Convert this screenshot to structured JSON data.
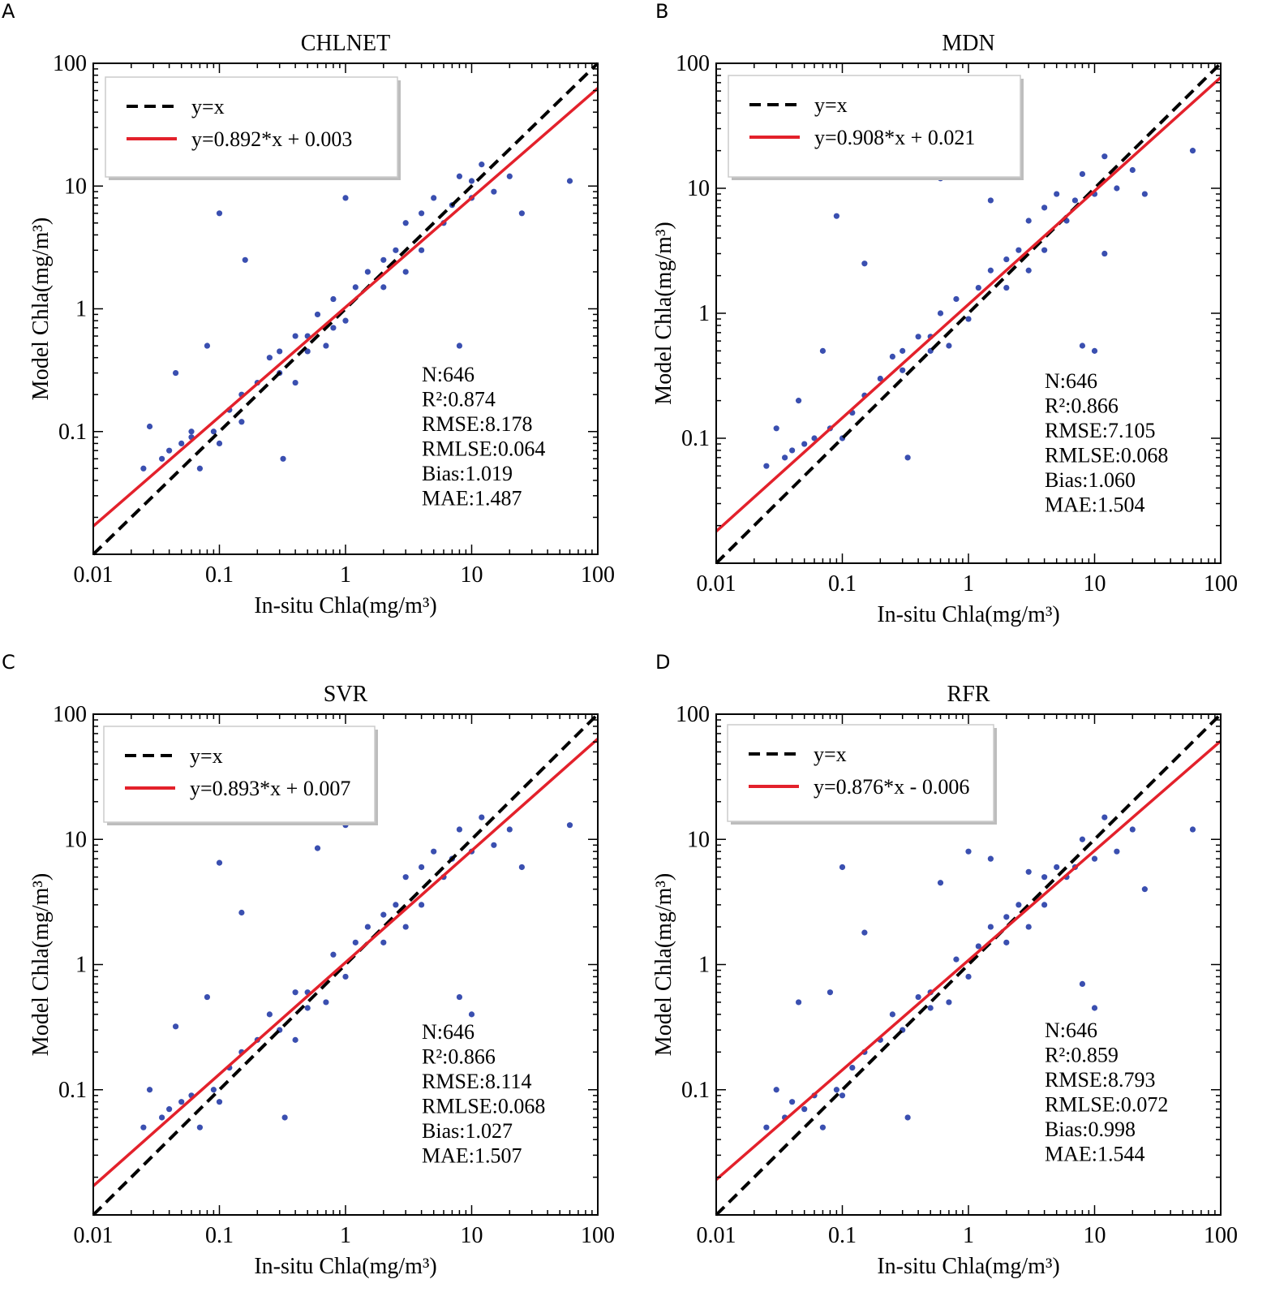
{
  "chart_data": [
    {
      "type": "scatter",
      "panel_label": "A",
      "title": "CHLNET",
      "xlabel": "In-situ Chla(mg/m³)",
      "ylabel": "Model Chla(mg/m³)",
      "xscale": "log",
      "yscale": "log",
      "xlim": [
        0.01,
        100
      ],
      "ylim": [
        0.01,
        100
      ],
      "xticks": [
        "0.01",
        "0.1",
        "1",
        "10",
        "100"
      ],
      "yticks": [
        "",
        "0.1",
        "1",
        "10",
        "100"
      ],
      "legend": {
        "placement": "top-left",
        "entries": [
          "y=x",
          "y=0.892*x + 0.003"
        ]
      },
      "fit": {
        "slope": 0.892,
        "intercept": 0.003
      },
      "stats": [
        "N:646",
        "R²:0.874",
        "RMSE:8.178",
        "RMLSE:0.064",
        "Bias:1.019",
        "MAE:1.487"
      ],
      "points": [
        [
          0.025,
          0.05
        ],
        [
          0.028,
          0.11
        ],
        [
          0.035,
          0.06
        ],
        [
          0.04,
          0.07
        ],
        [
          0.045,
          0.3
        ],
        [
          0.05,
          0.08
        ],
        [
          0.06,
          0.09
        ],
        [
          0.07,
          0.05
        ],
        [
          0.08,
          0.5
        ],
        [
          0.09,
          0.1
        ],
        [
          0.1,
          6
        ],
        [
          0.1,
          0.08
        ],
        [
          0.12,
          0.15
        ],
        [
          0.15,
          0.2
        ],
        [
          0.16,
          2.5
        ],
        [
          0.2,
          0.25
        ],
        [
          0.25,
          0.4
        ],
        [
          0.3,
          0.3
        ],
        [
          0.32,
          0.06
        ],
        [
          0.4,
          0.6
        ],
        [
          0.5,
          0.45
        ],
        [
          0.6,
          0.9
        ],
        [
          0.7,
          0.5
        ],
        [
          0.8,
          1.2
        ],
        [
          1,
          0.8
        ],
        [
          1,
          8
        ],
        [
          1.5,
          2
        ],
        [
          2,
          1.5
        ],
        [
          2.5,
          3
        ],
        [
          3,
          5
        ],
        [
          4,
          3
        ],
        [
          5,
          8
        ],
        [
          6,
          5
        ],
        [
          8,
          12
        ],
        [
          8,
          0.5
        ],
        [
          10,
          8
        ],
        [
          12,
          15
        ],
        [
          15,
          9
        ],
        [
          20,
          12
        ],
        [
          25,
          6
        ],
        [
          60,
          11
        ],
        [
          0.4,
          0.25
        ],
        [
          1.2,
          1.5
        ],
        [
          0.06,
          0.1
        ],
        [
          0.15,
          0.12
        ],
        [
          3,
          2
        ],
        [
          7,
          7
        ],
        [
          0.5,
          0.6
        ],
        [
          2,
          2.5
        ],
        [
          0.3,
          0.45
        ],
        [
          0.8,
          0.7
        ],
        [
          4,
          6
        ],
        [
          10,
          11
        ]
      ]
    },
    {
      "type": "scatter",
      "panel_label": "B",
      "title": "MDN",
      "xlabel": "In-situ Chla(mg/m³)",
      "ylabel": "Model Chla(mg/m³)",
      "xscale": "log",
      "yscale": "log",
      "xlim": [
        0.01,
        100
      ],
      "ylim": [
        0.01,
        100
      ],
      "xticks": [
        "0.01",
        "0.1",
        "1",
        "10",
        "100"
      ],
      "yticks": [
        "",
        "0.1",
        "1",
        "10",
        "100"
      ],
      "legend": {
        "placement": "top-left",
        "entries": [
          "y=x",
          "y=0.908*x + 0.021"
        ]
      },
      "fit": {
        "slope": 0.908,
        "intercept": 0.021
      },
      "stats": [
        "N:646",
        "R²:0.866",
        "RMSE:7.105",
        "RMLSE:0.068",
        "Bias:1.060",
        "MAE:1.504"
      ],
      "points": [
        [
          0.025,
          0.06
        ],
        [
          0.03,
          0.12
        ],
        [
          0.035,
          0.07
        ],
        [
          0.04,
          0.08
        ],
        [
          0.045,
          0.2
        ],
        [
          0.05,
          0.09
        ],
        [
          0.06,
          0.1
        ],
        [
          0.07,
          0.5
        ],
        [
          0.08,
          0.12
        ],
        [
          0.09,
          6
        ],
        [
          0.1,
          0.1
        ],
        [
          0.12,
          0.16
        ],
        [
          0.15,
          2.5
        ],
        [
          0.15,
          0.22
        ],
        [
          0.2,
          0.3
        ],
        [
          0.25,
          0.45
        ],
        [
          0.3,
          0.35
        ],
        [
          0.33,
          0.07
        ],
        [
          0.4,
          0.65
        ],
        [
          0.5,
          0.5
        ],
        [
          0.6,
          1
        ],
        [
          0.6,
          12
        ],
        [
          0.7,
          0.55
        ],
        [
          0.8,
          1.3
        ],
        [
          1,
          0.9
        ],
        [
          1.5,
          8
        ],
        [
          1.5,
          2.2
        ],
        [
          2,
          1.6
        ],
        [
          2.5,
          3.2
        ],
        [
          3,
          5.5
        ],
        [
          4,
          3.2
        ],
        [
          5,
          9
        ],
        [
          6,
          5.5
        ],
        [
          8,
          13
        ],
        [
          8,
          0.55
        ],
        [
          10,
          0.5
        ],
        [
          10,
          9
        ],
        [
          12,
          18
        ],
        [
          12,
          3
        ],
        [
          15,
          10
        ],
        [
          20,
          14
        ],
        [
          25,
          9
        ],
        [
          60,
          20
        ],
        [
          1.2,
          1.6
        ],
        [
          3,
          2.2
        ],
        [
          7,
          8
        ],
        [
          0.5,
          0.65
        ],
        [
          2,
          2.7
        ],
        [
          0.3,
          0.5
        ],
        [
          4,
          7
        ]
      ]
    },
    {
      "type": "scatter",
      "panel_label": "C",
      "title": "SVR",
      "xlabel": "In-situ Chla(mg/m³)",
      "ylabel": "Model Chla(mg/m³)",
      "xscale": "log",
      "yscale": "log",
      "xlim": [
        0.01,
        100
      ],
      "ylim": [
        0.01,
        100
      ],
      "xticks": [
        "0.01",
        "0.1",
        "1",
        "10",
        "100"
      ],
      "yticks": [
        "",
        "0.1",
        "1",
        "10",
        "100"
      ],
      "legend": {
        "placement": "top-left",
        "entries": [
          "y=x",
          "y=0.893*x + 0.007"
        ]
      },
      "fit": {
        "slope": 0.893,
        "intercept": 0.007
      },
      "stats": [
        "N:646",
        "R²:0.866",
        "RMSE:8.114",
        "RMLSE:0.068",
        "Bias:1.027",
        "MAE:1.507"
      ],
      "points": [
        [
          0.025,
          0.05
        ],
        [
          0.028,
          0.1
        ],
        [
          0.035,
          0.06
        ],
        [
          0.04,
          0.07
        ],
        [
          0.045,
          0.32
        ],
        [
          0.05,
          0.08
        ],
        [
          0.06,
          0.09
        ],
        [
          0.07,
          0.05
        ],
        [
          0.08,
          0.55
        ],
        [
          0.09,
          0.1
        ],
        [
          0.1,
          6.5
        ],
        [
          0.1,
          0.08
        ],
        [
          0.12,
          0.15
        ],
        [
          0.15,
          0.2
        ],
        [
          0.15,
          2.6
        ],
        [
          0.2,
          0.25
        ],
        [
          0.25,
          0.4
        ],
        [
          0.3,
          0.3
        ],
        [
          0.33,
          0.06
        ],
        [
          0.4,
          0.6
        ],
        [
          0.5,
          0.45
        ],
        [
          0.6,
          8.5
        ],
        [
          0.7,
          0.5
        ],
        [
          0.8,
          1.2
        ],
        [
          1,
          0.8
        ],
        [
          1,
          13
        ],
        [
          1.5,
          2
        ],
        [
          2,
          1.5
        ],
        [
          2.5,
          3
        ],
        [
          3,
          5
        ],
        [
          4,
          3
        ],
        [
          5,
          8
        ],
        [
          6,
          5
        ],
        [
          8,
          12
        ],
        [
          8,
          0.55
        ],
        [
          10,
          0.4
        ],
        [
          10,
          8
        ],
        [
          12,
          15
        ],
        [
          15,
          9
        ],
        [
          20,
          12
        ],
        [
          25,
          6
        ],
        [
          60,
          13
        ],
        [
          0.4,
          0.25
        ],
        [
          1.2,
          1.5
        ],
        [
          3,
          2
        ],
        [
          7,
          7
        ],
        [
          0.5,
          0.6
        ],
        [
          2,
          2.5
        ],
        [
          4,
          6
        ]
      ]
    },
    {
      "type": "scatter",
      "panel_label": "D",
      "title": "RFR",
      "xlabel": "In-situ Chla(mg/m³)",
      "ylabel": "Model Chla(mg/m³)",
      "xscale": "log",
      "yscale": "log",
      "xlim": [
        0.01,
        100
      ],
      "ylim": [
        0.01,
        100
      ],
      "xticks": [
        "0.01",
        "0.1",
        "1",
        "10",
        "100"
      ],
      "yticks": [
        "",
        "0.1",
        "1",
        "10",
        "100"
      ],
      "legend": {
        "placement": "top-left",
        "entries": [
          "y=x",
          "y=0.876*x - 0.006"
        ]
      },
      "fit": {
        "slope": 0.876,
        "intercept": -0.006
      },
      "stats": [
        "N:646",
        "R²:0.859",
        "RMSE:8.793",
        "RMLSE:0.072",
        "Bias:0.998",
        "MAE:1.544"
      ],
      "points": [
        [
          0.025,
          0.05
        ],
        [
          0.03,
          0.1
        ],
        [
          0.035,
          0.06
        ],
        [
          0.04,
          0.08
        ],
        [
          0.045,
          0.5
        ],
        [
          0.05,
          0.07
        ],
        [
          0.06,
          0.09
        ],
        [
          0.07,
          0.05
        ],
        [
          0.08,
          0.6
        ],
        [
          0.09,
          0.1
        ],
        [
          0.1,
          6
        ],
        [
          0.1,
          0.09
        ],
        [
          0.12,
          0.15
        ],
        [
          0.15,
          0.2
        ],
        [
          0.15,
          1.8
        ],
        [
          0.2,
          0.25
        ],
        [
          0.25,
          0.4
        ],
        [
          0.3,
          0.3
        ],
        [
          0.33,
          0.06
        ],
        [
          0.4,
          0.55
        ],
        [
          0.5,
          0.45
        ],
        [
          0.6,
          4.5
        ],
        [
          0.7,
          0.5
        ],
        [
          0.8,
          1.1
        ],
        [
          1,
          0.8
        ],
        [
          1,
          8
        ],
        [
          1.5,
          2
        ],
        [
          1.5,
          7
        ],
        [
          2,
          1.5
        ],
        [
          2.5,
          3
        ],
        [
          3,
          5.5
        ],
        [
          4,
          3
        ],
        [
          5,
          6
        ],
        [
          6,
          5
        ],
        [
          8,
          10
        ],
        [
          8,
          0.7
        ],
        [
          10,
          0.45
        ],
        [
          10,
          7
        ],
        [
          12,
          15
        ],
        [
          15,
          8
        ],
        [
          20,
          12
        ],
        [
          25,
          4
        ],
        [
          60,
          12
        ],
        [
          1.2,
          1.4
        ],
        [
          3,
          2
        ],
        [
          7,
          6
        ],
        [
          0.5,
          0.6
        ],
        [
          2,
          2.4
        ],
        [
          4,
          5
        ]
      ]
    }
  ]
}
